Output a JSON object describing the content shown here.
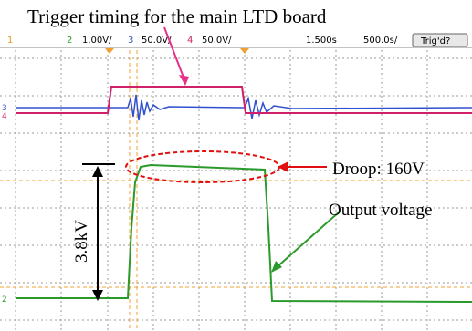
{
  "annotation_title": "Trigger timing for the main LTD board",
  "status_bar": {
    "ch1_label": "1",
    "ch2_label": "2",
    "ch2_scale": "1.00V/",
    "ch3_label": "3",
    "ch3_scale": "50.0V/",
    "ch4_label": "4",
    "ch4_scale": "50.0V/",
    "time_position": "1.500s",
    "time_scale": "500.0s/",
    "trigger_status": "Trig'd?"
  },
  "markers": {
    "ch3": "3",
    "ch4": "4",
    "ch2": "2"
  },
  "annotations": {
    "droop": "Droop: 160V",
    "output": "Output voltage",
    "amplitude": "3.8kV"
  }
}
